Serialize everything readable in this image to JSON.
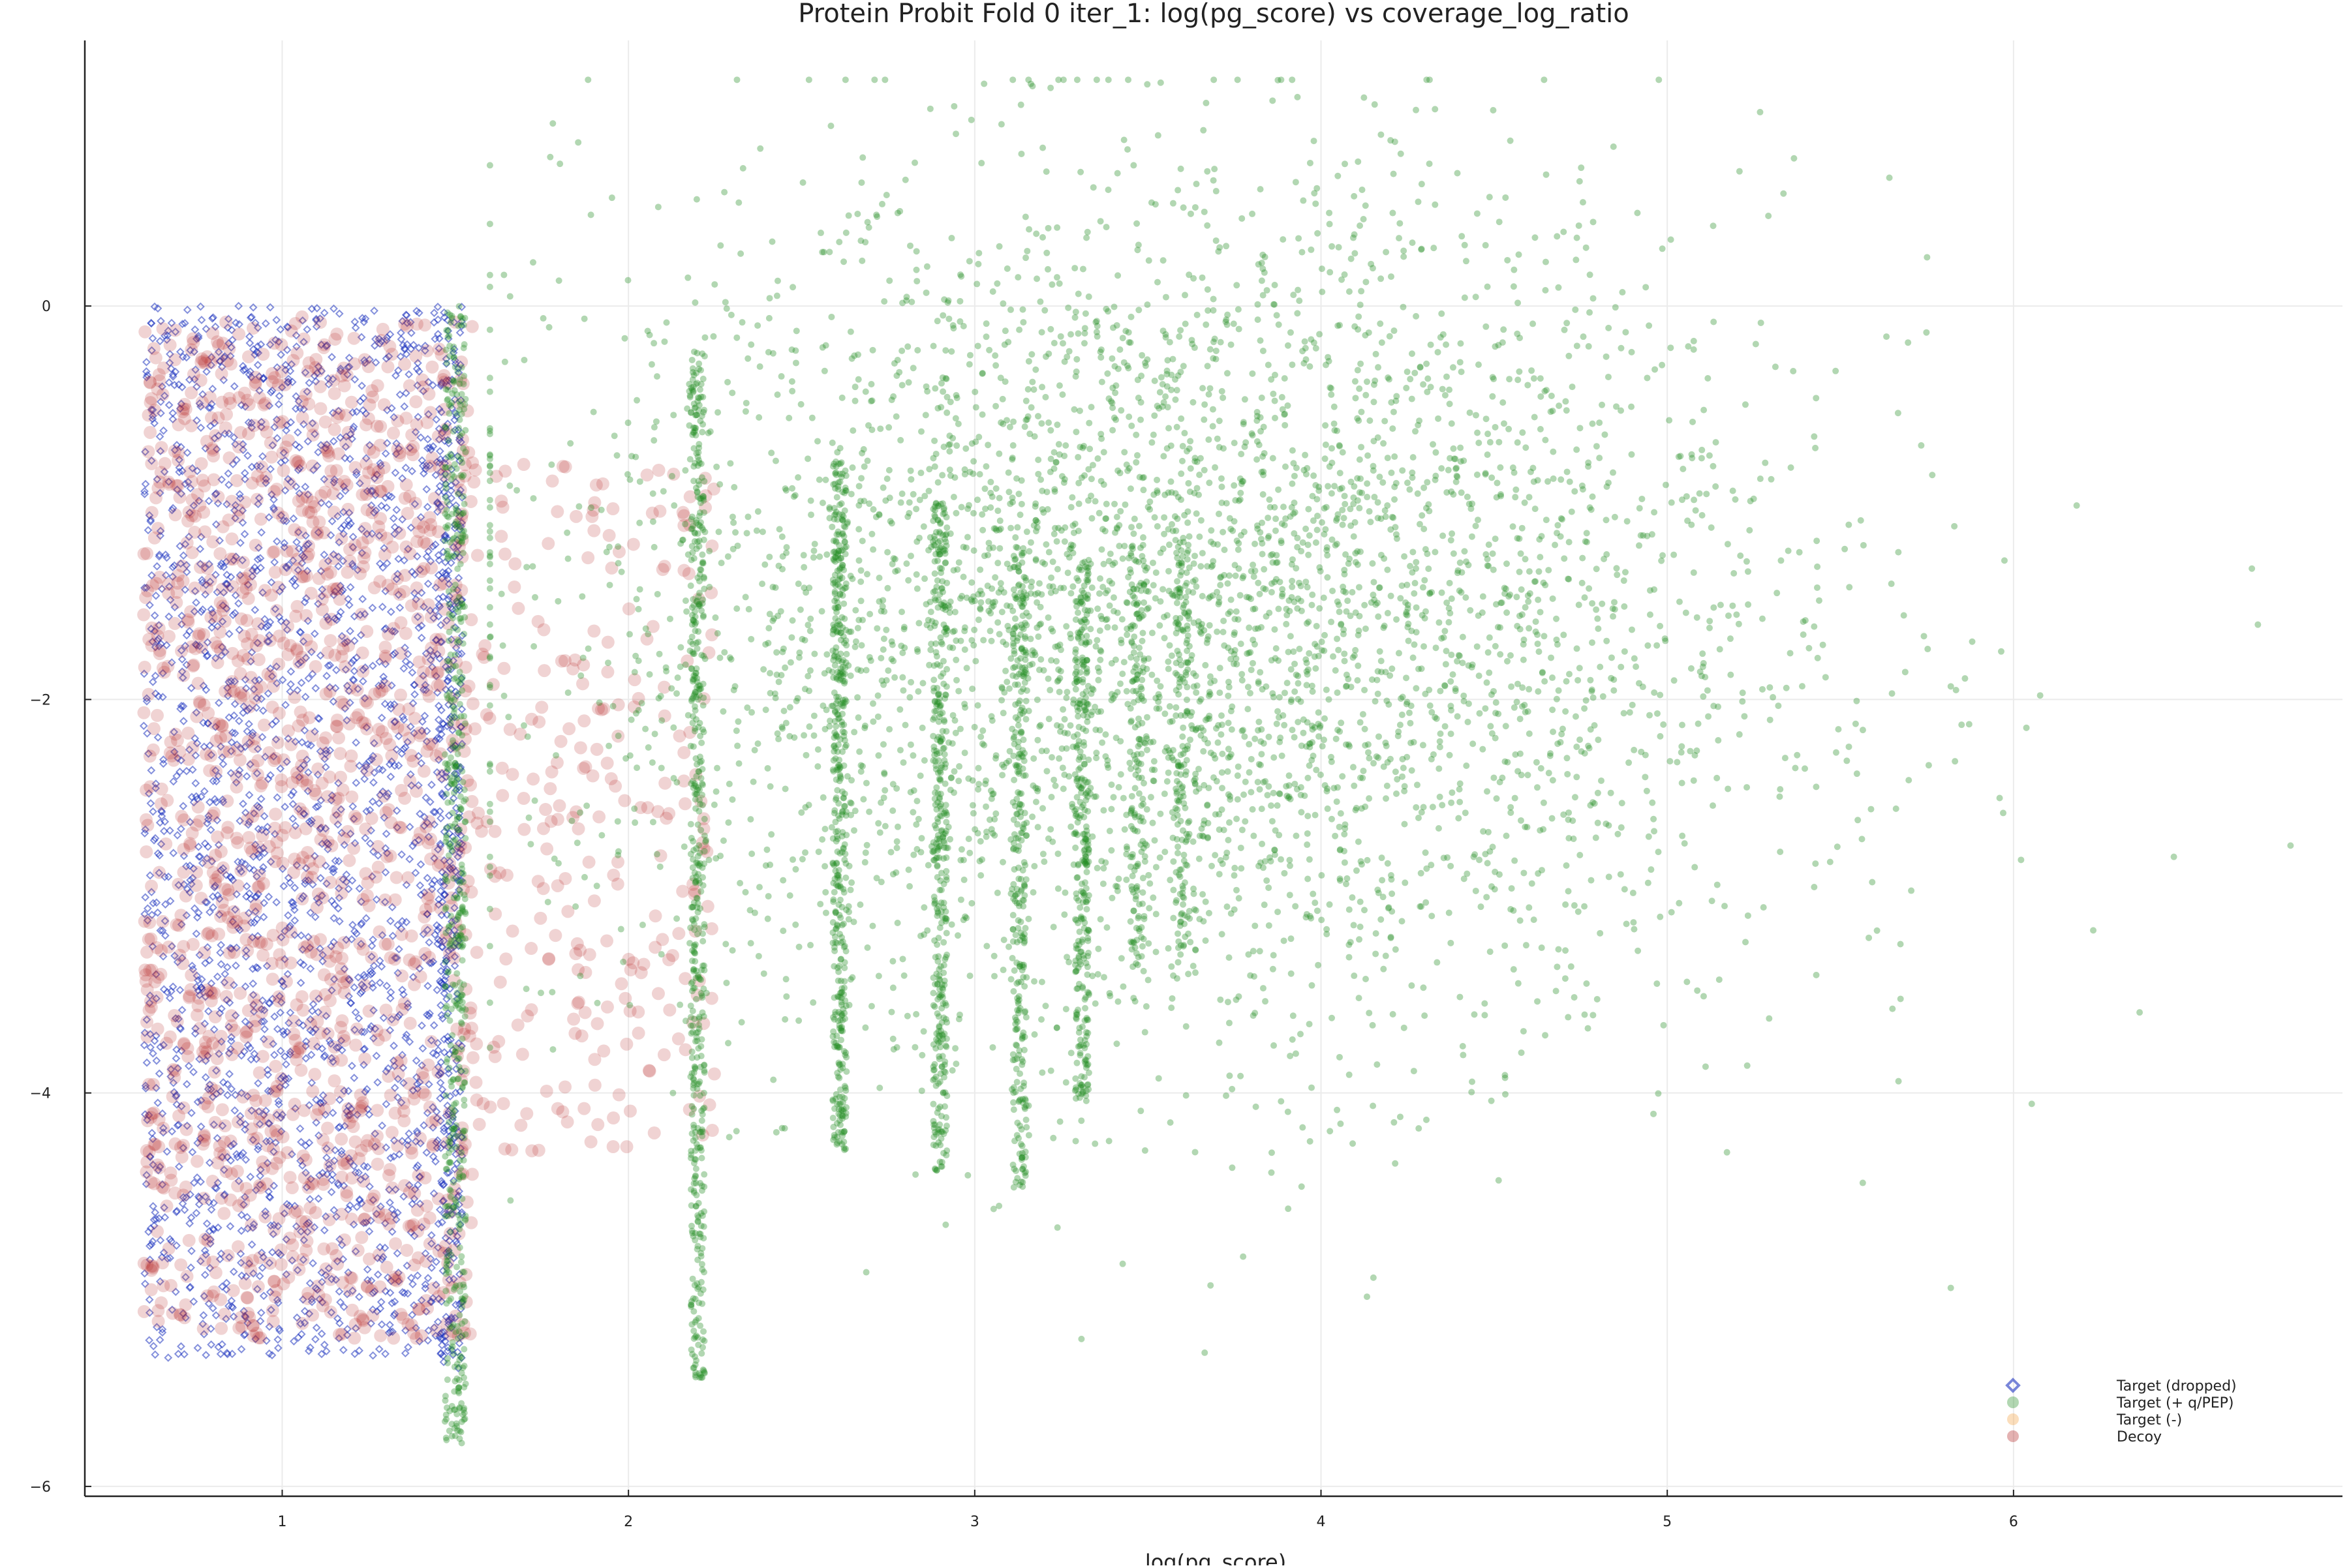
{
  "chart_data": {
    "type": "scatter",
    "title": "Protein Probit Fold 0 iter_1: log(pg_score) vs coverage_log_ratio",
    "xlabel": "log(pg_score)",
    "ylabel": "",
    "xlim": [
      0.43,
      6.95
    ],
    "ylim": [
      -6.05,
      1.35
    ],
    "x_ticks": [
      1,
      2,
      3,
      4,
      5,
      6
    ],
    "y_ticks": [
      0,
      -2,
      -4,
      -6
    ],
    "x_tick_labels": [
      "1",
      "2",
      "3",
      "4",
      "5",
      "6"
    ],
    "y_tick_labels": [
      "0",
      "−2",
      "−4",
      "−6"
    ],
    "grid": true,
    "legend_position": "bottom-right",
    "series": [
      {
        "name": "Target (dropped)",
        "marker": "diamond",
        "color": "#1f35c0",
        "regions": [
          {
            "x_range": [
              0.6,
              1.52
            ],
            "y_range": [
              -5.35,
              0.0
            ],
            "share": 0.9
          },
          {
            "x_range": [
              1.45,
              1.52
            ],
            "y_range": [
              -5.4,
              0.0
            ],
            "share": 0.1
          }
        ]
      },
      {
        "name": "Target (+ q/PEP)",
        "marker": "circle",
        "color": "#228b22",
        "regions": [
          {
            "x_range": [
              1.47,
              1.53
            ],
            "y_range": [
              -5.8,
              0.0
            ],
            "share": 0.08
          },
          {
            "x_range": [
              1.6,
              6.8
            ],
            "y_range": [
              -5.45,
              1.15
            ],
            "center_x": 3.6,
            "center_y": -1.6,
            "share": 0.62
          },
          {
            "x_range": [
              2.18,
              2.22
            ],
            "y_range": [
              -5.45,
              -0.2
            ],
            "share": 0.07
          },
          {
            "x_range": [
              2.59,
              2.63
            ],
            "y_range": [
              -4.3,
              -0.7
            ],
            "share": 0.06
          },
          {
            "x_range": [
              2.88,
              2.92
            ],
            "y_range": [
              -4.4,
              -1.0
            ],
            "share": 0.05
          },
          {
            "x_range": [
              3.11,
              3.15
            ],
            "y_range": [
              -4.5,
              -1.2
            ],
            "share": 0.04
          },
          {
            "x_range": [
              3.29,
              3.33
            ],
            "y_range": [
              -4.05,
              -1.3
            ],
            "share": 0.04
          },
          {
            "x_range": [
              3.45,
              3.49
            ],
            "y_range": [
              -3.4,
              -1.2
            ],
            "share": 0.02
          },
          {
            "x_range": [
              3.58,
              3.62
            ],
            "y_range": [
              -3.3,
              -1.2
            ],
            "share": 0.02
          }
        ]
      },
      {
        "name": "Target (-)",
        "marker": "circle",
        "color": "#f4a040",
        "regions": []
      },
      {
        "name": "Decoy",
        "marker": "circle",
        "color": "#b22222",
        "regions": [
          {
            "x_range": [
              0.6,
              1.55
            ],
            "y_range": [
              -5.25,
              -0.05
            ],
            "share": 0.85
          },
          {
            "x_range": [
              1.55,
              2.25
            ],
            "y_range": [
              -4.3,
              -0.8
            ],
            "share": 0.15
          }
        ]
      }
    ]
  }
}
